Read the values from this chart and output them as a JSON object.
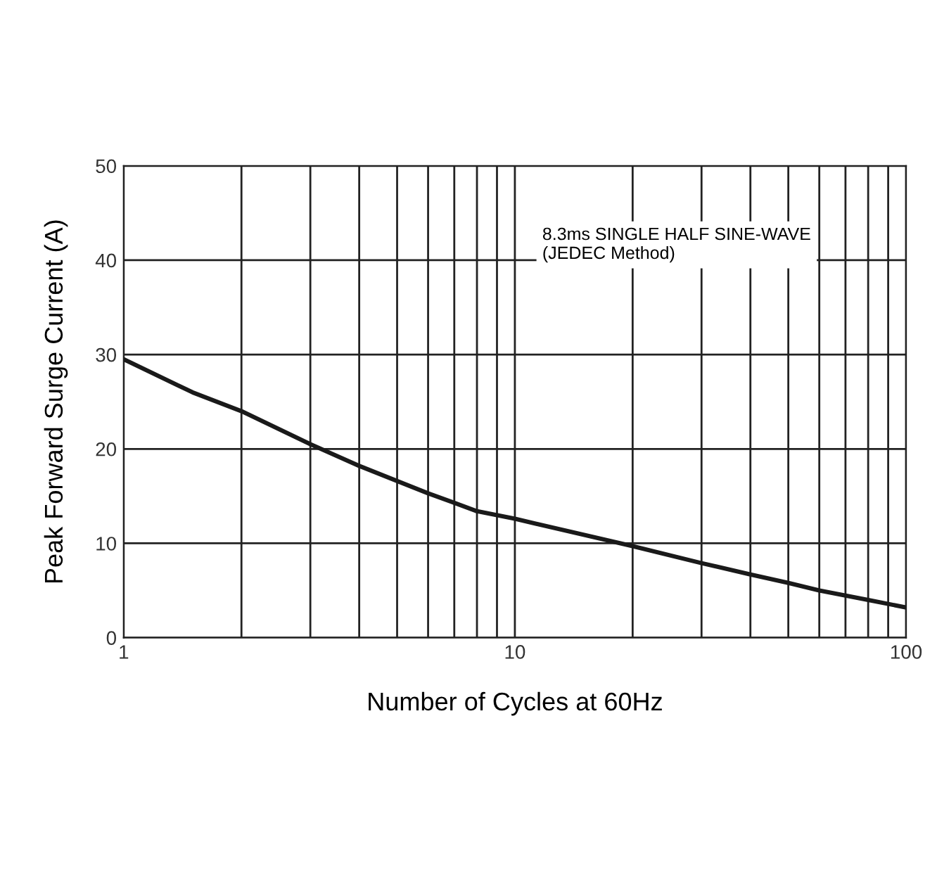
{
  "chart_data": {
    "type": "line",
    "xlabel": "Number of Cycles at 60Hz",
    "ylabel": "Peak Forward Surge Current (A)",
    "annotations": [
      "8.3ms SINGLE HALF SINE-WAVE\n(JEDEC Method)"
    ],
    "x": [
      1,
      1.5,
      2,
      3,
      4,
      5,
      6,
      7,
      8,
      10,
      20,
      30,
      40,
      50,
      60,
      80,
      100
    ],
    "series": [
      {
        "color": "#1a1a1a",
        "values": [
          29.5,
          26,
          24,
          20.5,
          18.2,
          16.6,
          15.3,
          14.3,
          13.4,
          12.6,
          9.7,
          7.9,
          6.7,
          5.8,
          5.0,
          4.0,
          3.2
        ]
      }
    ],
    "log": "x",
    "xlim": [
      1,
      100
    ],
    "xticks": [
      1,
      {
        "value": 2,
        "label": null
      },
      {
        "value": 3,
        "label": null
      },
      {
        "value": 4,
        "label": null
      },
      {
        "value": 5,
        "label": null
      },
      {
        "value": 6,
        "label": null
      },
      {
        "value": 7,
        "label": null
      },
      {
        "value": 8,
        "label": null
      },
      {
        "value": 9,
        "label": null
      },
      10,
      {
        "value": 20,
        "label": null
      },
      {
        "value": 30,
        "label": null
      },
      {
        "value": 40,
        "label": null
      },
      {
        "value": 50,
        "label": null
      },
      {
        "value": 60,
        "label": null
      },
      {
        "value": 70,
        "label": null
      },
      {
        "value": 80,
        "label": null
      },
      {
        "value": 90,
        "label": null
      },
      100
    ],
    "ylim": [
      0,
      50
    ],
    "yticks": [
      0,
      10,
      20,
      30,
      40,
      50
    ],
    "grid": true,
    "marker": "none",
    "line_style": "solid"
  }
}
